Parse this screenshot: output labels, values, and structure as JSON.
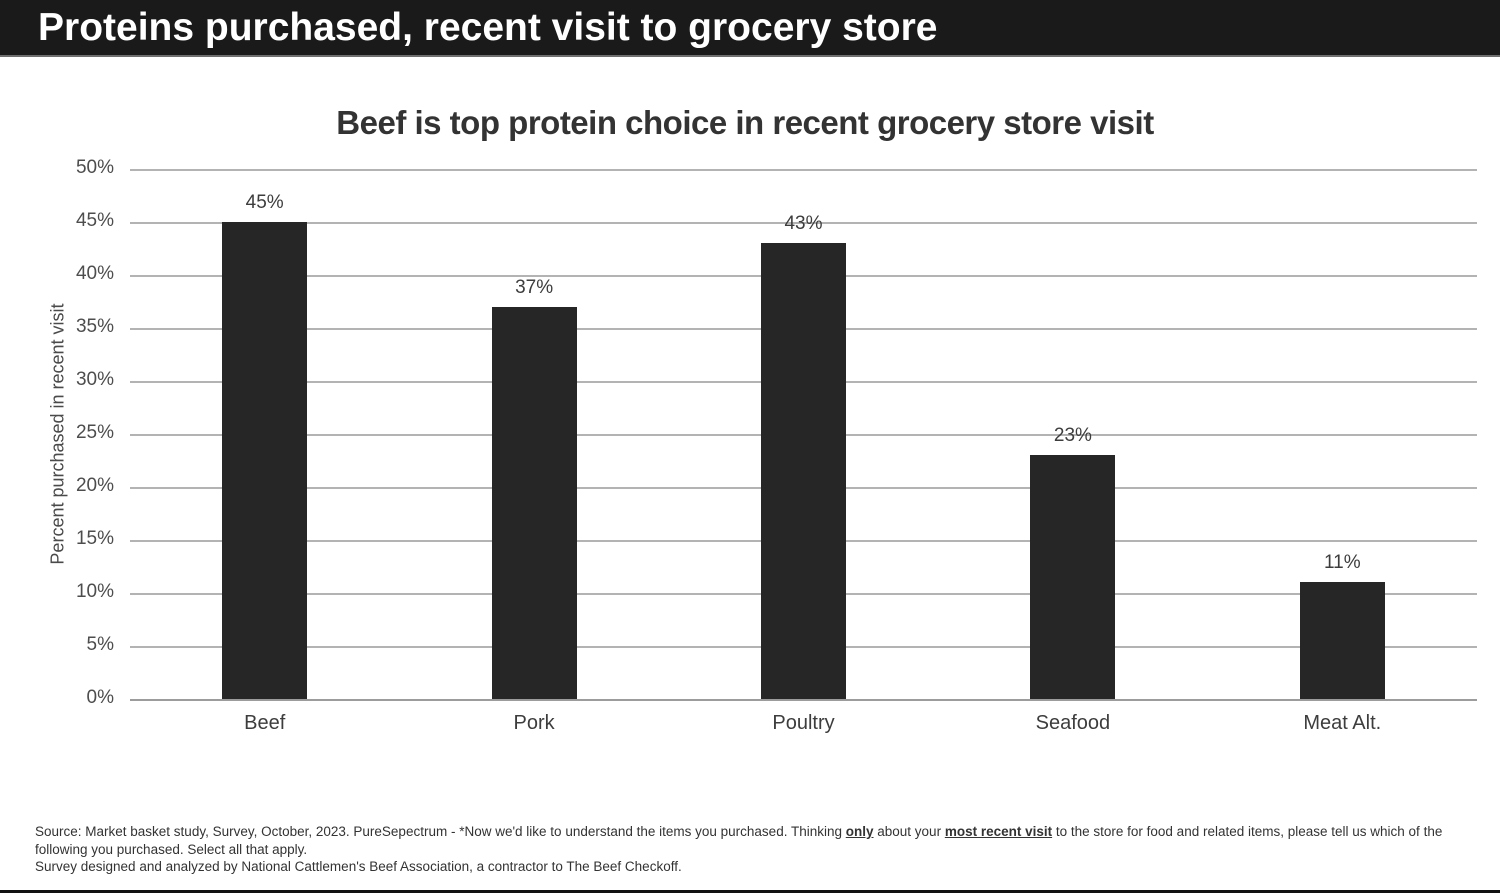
{
  "header": {
    "title": "Proteins purchased, recent visit to grocery store"
  },
  "chart_data": {
    "type": "bar",
    "title": "Beef is top protein choice in recent grocery store visit",
    "categories": [
      "Beef",
      "Pork",
      "Poultry",
      "Seafood",
      "Meat Alt."
    ],
    "values": [
      45,
      37,
      43,
      23,
      11
    ],
    "value_labels": [
      "45%",
      "37%",
      "43%",
      "23%",
      "11%"
    ],
    "xlabel": "",
    "ylabel": "Percent purchased in recent visit",
    "ylim": [
      0,
      50
    ],
    "ytick_step": 5,
    "ytick_labels": [
      "0%",
      "5%",
      "10%",
      "15%",
      "20%",
      "25%",
      "30%",
      "35%",
      "40%",
      "45%",
      "50%"
    ],
    "grid": true,
    "legend_position": "none",
    "bar_color": "#262626",
    "gridline_color": "#b3b3b3"
  },
  "footer": {
    "line1_prefix": "Source: Market basket study, Survey, October, 2023. PureSepectrum - *Now we'd like to understand the items you purchased. Thinking ",
    "line1_bold1": "only",
    "line1_mid": " about your ",
    "line1_bold2": "most recent visit",
    "line1_suffix": " to the store for food and related items, please tell us which of the following you purchased. Select all that apply.",
    "line2": "Survey designed and analyzed by National Cattlemen's Beef Association, a contractor to The Beef Checkoff."
  },
  "colors": {
    "header_background": "#1a1a1a",
    "header_text": "#ffffff",
    "bar": "#262626",
    "gridline": "#b3b3b3",
    "text": "#333333"
  }
}
